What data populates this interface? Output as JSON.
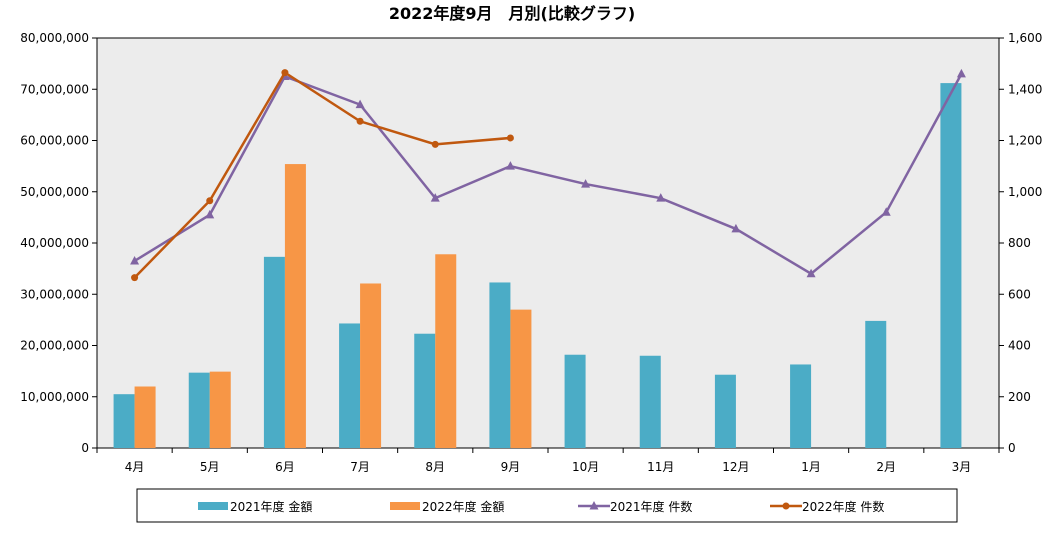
{
  "chart_data": {
    "type": "bar",
    "title": "2022年度9月　月別(比較グラフ)",
    "categories": [
      "4月",
      "5月",
      "6月",
      "7月",
      "8月",
      "9月",
      "10月",
      "11月",
      "12月",
      "1月",
      "2月",
      "3月"
    ],
    "y_left": {
      "lim": [
        0,
        80000000
      ],
      "ticks": [
        0,
        10000000,
        20000000,
        30000000,
        40000000,
        50000000,
        60000000,
        70000000,
        80000000
      ],
      "tick_labels": [
        "0",
        "10,000,000",
        "20,000,000",
        "30,000,000",
        "40,000,000",
        "50,000,000",
        "60,000,000",
        "70,000,000",
        "80,000,000"
      ]
    },
    "y_right": {
      "lim": [
        0,
        1600
      ],
      "ticks": [
        0,
        200,
        400,
        600,
        800,
        1000,
        1200,
        1400,
        1600
      ],
      "tick_labels": [
        "0",
        "200",
        "400",
        "600",
        "800",
        "1,000",
        "1,200",
        "1,400",
        "1,600"
      ]
    },
    "series": [
      {
        "name": "2021年度 金額",
        "kind": "bar",
        "axis": "left",
        "color": "#4bacc6",
        "values": [
          10500000,
          14700000,
          37300000,
          24300000,
          22300000,
          32300000,
          18200000,
          18000000,
          14300000,
          16300000,
          24800000,
          71200000
        ]
      },
      {
        "name": "2022年度 金額",
        "kind": "bar",
        "axis": "left",
        "color": "#f79646",
        "values": [
          12000000,
          14900000,
          55400000,
          32100000,
          37800000,
          27000000,
          null,
          null,
          null,
          null,
          null,
          null
        ]
      },
      {
        "name": "2021年度 件数",
        "kind": "line",
        "marker": "triangle",
        "axis": "right",
        "color": "#8064a2",
        "values": [
          730,
          910,
          1450,
          1340,
          975,
          1100,
          1030,
          975,
          855,
          680,
          920,
          1460
        ]
      },
      {
        "name": "2022年度 件数",
        "kind": "line",
        "marker": "circle",
        "axis": "right",
        "color": "#c0580f",
        "values": [
          665,
          965,
          1465,
          1275,
          1185,
          1210,
          null,
          null,
          null,
          null,
          null,
          null
        ]
      }
    ],
    "grid": false,
    "legend": "bottom"
  }
}
